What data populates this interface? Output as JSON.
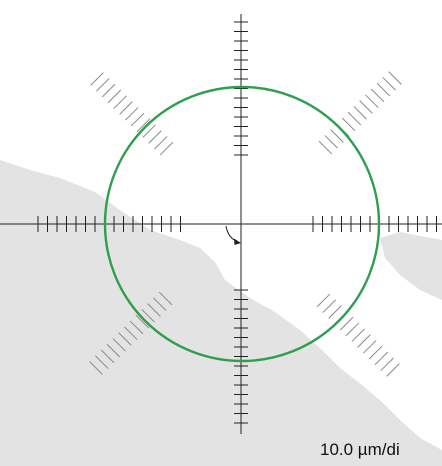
{
  "scale_bar": {
    "label": "10.0 µm/di"
  },
  "overlay": {
    "circle_color": "#2f9e4f",
    "reticle_color": "#222222",
    "diagonal_tick_color": "#8a8a8a",
    "specimen_color": "#e3e3e3"
  },
  "icons": {
    "rotation_indicator": "curved-arrow-icon"
  }
}
